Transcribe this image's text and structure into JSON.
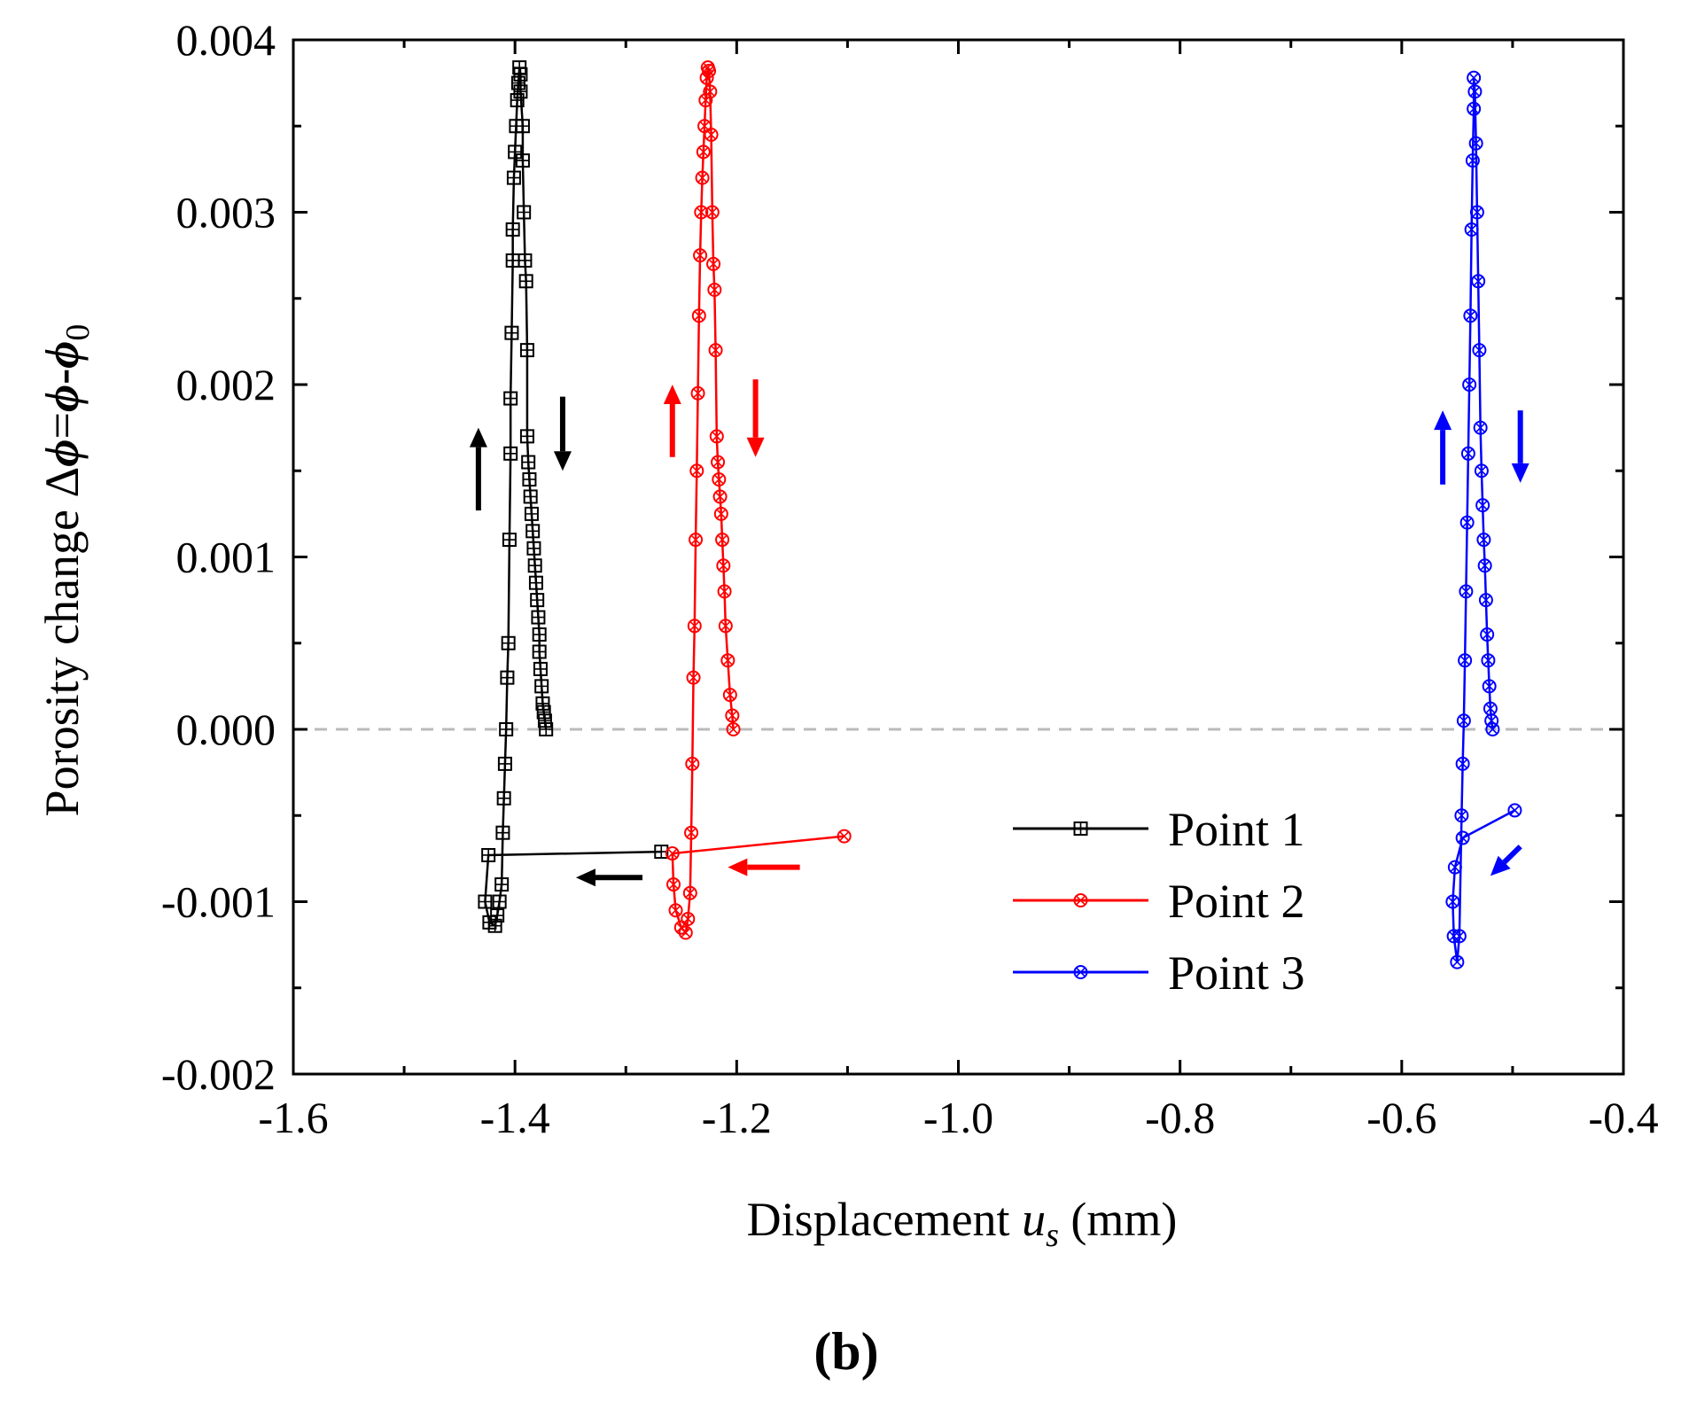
{
  "chart_data": {
    "type": "line",
    "title": "",
    "panel_label": "(b)",
    "xlabel": {
      "prefix": "Displacement ",
      "var": "u",
      "sub": "s",
      "suffix": " (mm)"
    },
    "ylabel": {
      "prefix": "Porosity change Δ",
      "phi": "ϕ",
      "eq": "=",
      "minus": "-",
      "sub": "0"
    },
    "xlim": [
      -1.6,
      -0.4
    ],
    "ylim": [
      -0.002,
      0.004
    ],
    "x_ticks": [
      -1.6,
      -1.4,
      -1.2,
      -1.0,
      -0.8,
      -0.6,
      -0.4
    ],
    "x_tick_labels": [
      "-1.6",
      "-1.4",
      "-1.2",
      "-1.0",
      "-0.8",
      "-0.6",
      "-0.4"
    ],
    "y_ticks": [
      -0.002,
      -0.001,
      0.0,
      0.001,
      0.002,
      0.003,
      0.004
    ],
    "y_tick_labels": [
      "-0.002",
      "-0.001",
      "0.000",
      "0.001",
      "0.002",
      "0.003",
      "0.004"
    ],
    "reference_line": {
      "y": 0.0,
      "style": "dashed",
      "color": "#bbbbbb"
    },
    "legend_position": "lower-right",
    "series": [
      {
        "name": "Point 1",
        "color": "#000000",
        "marker": "square-plus",
        "x": [
          -1.268,
          -1.424,
          -1.427,
          -1.423,
          -1.418,
          -1.416,
          -1.414,
          -1.412,
          -1.411,
          -1.41,
          -1.409,
          -1.408,
          -1.407,
          -1.406,
          -1.405,
          -1.404,
          -1.404,
          -1.403,
          -1.402,
          -1.402,
          -1.401,
          -1.4,
          -1.399,
          -1.398,
          -1.397,
          -1.396,
          -1.395,
          -1.395,
          -1.393,
          -1.393,
          -1.392,
          -1.391,
          -1.39,
          -1.389,
          -1.389,
          -1.388,
          -1.387,
          -1.386,
          -1.385,
          -1.384,
          -1.383,
          -1.382,
          -1.381,
          -1.38,
          -1.379,
          -1.378,
          -1.378,
          -1.377,
          -1.376,
          -1.375,
          -1.374,
          -1.373,
          -1.372
        ],
        "y": [
          -0.00071,
          -0.00073,
          -0.001,
          -0.00112,
          -0.00114,
          -0.00108,
          -0.001,
          -0.0009,
          -0.0006,
          -0.0004,
          -0.0002,
          0.0,
          0.0003,
          0.0005,
          0.0011,
          0.0016,
          0.00192,
          0.0023,
          0.00272,
          0.0029,
          0.0032,
          0.00335,
          0.0035,
          0.00365,
          0.00375,
          0.00384,
          0.0038,
          0.0037,
          0.0035,
          0.0033,
          0.003,
          0.00272,
          0.0026,
          0.0022,
          0.0017,
          0.00155,
          0.00145,
          0.00135,
          0.00125,
          0.00115,
          0.00105,
          0.00095,
          0.00085,
          0.00075,
          0.00065,
          0.00055,
          0.00045,
          0.00035,
          0.00025,
          0.00015,
          0.0001,
          5e-05,
          0.0
        ]
      },
      {
        "name": "Point 2",
        "color": "#ff0000",
        "marker": "circle-x",
        "x": [
          -1.103,
          -1.258,
          -1.257,
          -1.255,
          -1.25,
          -1.246,
          -1.244,
          -1.242,
          -1.241,
          -1.24,
          -1.239,
          -1.238,
          -1.237,
          -1.236,
          -1.235,
          -1.234,
          -1.233,
          -1.232,
          -1.231,
          -1.23,
          -1.229,
          -1.228,
          -1.227,
          -1.226,
          -1.225,
          -1.224,
          -1.223,
          -1.222,
          -1.221,
          -1.22,
          -1.219,
          -1.218,
          -1.217,
          -1.216,
          -1.215,
          -1.214,
          -1.213,
          -1.212,
          -1.211,
          -1.21,
          -1.208,
          -1.206,
          -1.204,
          -1.203
        ],
        "y": [
          -0.00062,
          -0.00072,
          -0.0009,
          -0.00105,
          -0.00115,
          -0.00118,
          -0.0011,
          -0.00095,
          -0.0006,
          -0.0002,
          0.0003,
          0.0006,
          0.0011,
          0.0015,
          0.00195,
          0.0024,
          0.00275,
          0.003,
          0.0032,
          0.00335,
          0.0035,
          0.00365,
          0.00378,
          0.00384,
          0.00382,
          0.0037,
          0.00345,
          0.003,
          0.0027,
          0.00255,
          0.0022,
          0.0017,
          0.00155,
          0.00145,
          0.00135,
          0.00125,
          0.0011,
          0.00095,
          0.0008,
          0.0006,
          0.0004,
          0.0002,
          8e-05,
          0.0
        ]
      },
      {
        "name": "Point 3",
        "color": "#0000ff",
        "marker": "circle-x",
        "x": [
          -0.498,
          -0.545,
          -0.552,
          -0.554,
          -0.553,
          -0.55,
          -0.548,
          -0.546,
          -0.545,
          -0.544,
          -0.543,
          -0.542,
          -0.541,
          -0.54,
          -0.539,
          -0.538,
          -0.537,
          -0.536,
          -0.535,
          -0.535,
          -0.534,
          -0.533,
          -0.532,
          -0.531,
          -0.53,
          -0.529,
          -0.528,
          -0.527,
          -0.526,
          -0.525,
          -0.524,
          -0.523,
          -0.522,
          -0.521,
          -0.52,
          -0.519,
          -0.518
        ],
        "y": [
          -0.00047,
          -0.00063,
          -0.0008,
          -0.001,
          -0.0012,
          -0.00135,
          -0.0012,
          -0.0005,
          -0.0002,
          5e-05,
          0.0004,
          0.0008,
          0.0012,
          0.0016,
          0.002,
          0.0024,
          0.0029,
          0.0033,
          0.0036,
          0.00378,
          0.0037,
          0.0034,
          0.003,
          0.0026,
          0.0022,
          0.00175,
          0.0015,
          0.0013,
          0.0011,
          0.00095,
          0.00075,
          0.00055,
          0.0004,
          0.00025,
          0.00012,
          5e-05,
          0.0
        ]
      }
    ],
    "arrows": [
      {
        "series": "Point 1",
        "direction": "up",
        "x": -1.433,
        "y1": 0.00127,
        "y2": 0.00175
      },
      {
        "series": "Point 1",
        "direction": "down",
        "x": -1.357,
        "y1": 0.00193,
        "y2": 0.0015
      },
      {
        "series": "Point 1",
        "direction": "left",
        "y": -0.00086,
        "x1": -1.285,
        "x2": -1.345
      },
      {
        "series": "Point 2",
        "direction": "up",
        "x": -1.258,
        "y1": 0.00158,
        "y2": 0.002
      },
      {
        "series": "Point 2",
        "direction": "down",
        "x": -1.183,
        "y1": 0.00203,
        "y2": 0.00158
      },
      {
        "series": "Point 2",
        "direction": "left",
        "y": -0.0008,
        "x1": -1.143,
        "x2": -1.208
      },
      {
        "series": "Point 3",
        "direction": "up",
        "x": -0.563,
        "y1": 0.00142,
        "y2": 0.00185
      },
      {
        "series": "Point 3",
        "direction": "down",
        "x": -0.493,
        "y1": 0.00185,
        "y2": 0.00143
      },
      {
        "series": "Point 3",
        "direction": "down-left",
        "x1": -0.493,
        "y1": -0.00068,
        "x2": -0.52,
        "y2": -0.00085
      }
    ]
  }
}
